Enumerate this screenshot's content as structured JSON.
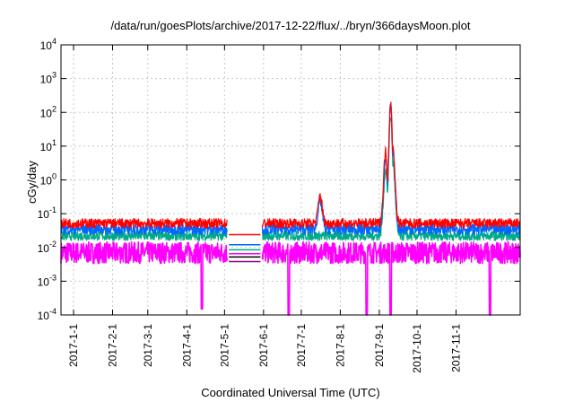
{
  "chart_data": {
    "type": "line",
    "title": "/data/run/goesPlots/archive/2017-12-22/flux/../bryn/366daysMoon.plot",
    "xlabel": "Coordinated Universal Time (UTC)",
    "ylabel": "cGy/day",
    "yscale": "log",
    "ylim": [
      0.0001,
      10000
    ],
    "xlim": [
      "2016-12-22",
      "2017-12-22"
    ],
    "grid": true,
    "y_ticks": [
      {
        "base": "10",
        "exp": "-4"
      },
      {
        "base": "10",
        "exp": "-3"
      },
      {
        "base": "10",
        "exp": "-2"
      },
      {
        "base": "10",
        "exp": "-1"
      },
      {
        "base": "10",
        "exp": "0"
      },
      {
        "base": "10",
        "exp": "1"
      },
      {
        "base": "10",
        "exp": "2"
      },
      {
        "base": "10",
        "exp": "3"
      },
      {
        "base": "10",
        "exp": "4"
      }
    ],
    "x_ticks": [
      "2017-1-1",
      "2017-2-1",
      "2017-3-1",
      "2017-4-1",
      "2017-5-1",
      "2017-6-1",
      "2017-7-1",
      "2017-8-1",
      "2017-9-1",
      "2017-10-1",
      "2017-11-1"
    ],
    "gap": [
      "2017-5-3",
      "2017-5-31"
    ],
    "series": [
      {
        "color": "#ff0000",
        "baseline": 0.052,
        "points": [
          [
            "2017-7-16",
            0.35
          ],
          [
            "2017-9-6",
            7.0
          ],
          [
            "2017-9-10",
            180
          ],
          [
            "2017-9-12",
            8.0
          ]
        ]
      },
      {
        "color": "#0066ff",
        "baseline": 0.035,
        "points": [
          [
            "2017-7-16",
            0.25
          ],
          [
            "2017-9-6",
            5.0
          ],
          [
            "2017-9-10",
            150
          ],
          [
            "2017-9-12",
            6.0
          ]
        ]
      },
      {
        "color": "#00aa88",
        "baseline": 0.022,
        "points": [
          [
            "2017-9-6",
            2.0
          ],
          [
            "2017-9-10",
            80
          ],
          [
            "2017-9-12",
            3.0
          ]
        ]
      },
      {
        "color": "#ff00ff",
        "baseline": 0.007,
        "points": [
          [
            "2017-4-13",
            0.00015
          ],
          [
            "2017-6-21",
            0.0001
          ],
          [
            "2017-8-22",
            0.0001
          ],
          [
            "2017-9-10",
            0.0001
          ],
          [
            "2017-11-28",
            0.0001
          ]
        ]
      }
    ]
  }
}
